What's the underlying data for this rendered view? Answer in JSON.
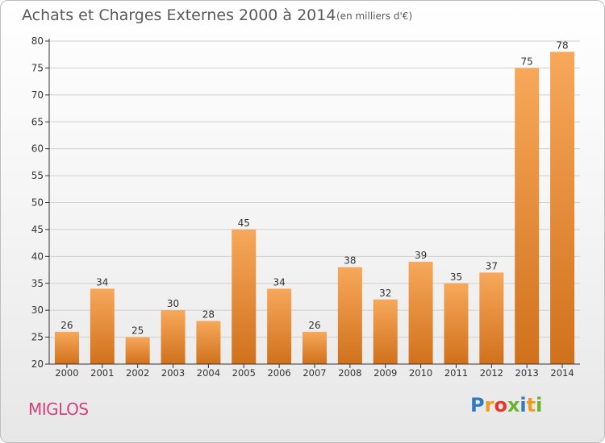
{
  "title": "Achats et Charges Externes 2000 à 2014",
  "subtitle": "(en milliers d'€)",
  "commune": "MIGLOS",
  "logo": {
    "text": "Proxiti",
    "letters": [
      {
        "ch": "P",
        "color": "#2e7bc4"
      },
      {
        "ch": "r",
        "color": "#f19a1e"
      },
      {
        "ch": "o",
        "color": "#e4372d"
      },
      {
        "ch": "x",
        "color": "#6bb22e"
      },
      {
        "ch": "i",
        "color": "#2e7bc4"
      },
      {
        "ch": "t",
        "color": "#f19a1e"
      },
      {
        "ch": "i",
        "color": "#6bb22e"
      }
    ]
  },
  "colors": {
    "bar_light": "#f7a85a",
    "bar_dark": "#d0711c",
    "axis": "#333333",
    "grid": "#cfcfcf",
    "title": "#5a5a5a",
    "commune": "#d5417c"
  },
  "chart_data": {
    "type": "bar",
    "title": "Achats et Charges Externes 2000 à 2014",
    "subtitle": "(en milliers d'€)",
    "categories": [
      "2000",
      "2001",
      "2002",
      "2003",
      "2004",
      "2005",
      "2006",
      "2007",
      "2008",
      "2009",
      "2010",
      "2011",
      "2012",
      "2013",
      "2014"
    ],
    "values": [
      26,
      34,
      25,
      30,
      28,
      45,
      34,
      26,
      38,
      32,
      39,
      35,
      37,
      75,
      78
    ],
    "ylim": [
      20,
      80
    ],
    "yticks": [
      20,
      25,
      30,
      35,
      40,
      45,
      50,
      55,
      60,
      65,
      70,
      75,
      80
    ],
    "grid": "horizontal",
    "data_labels": true
  }
}
